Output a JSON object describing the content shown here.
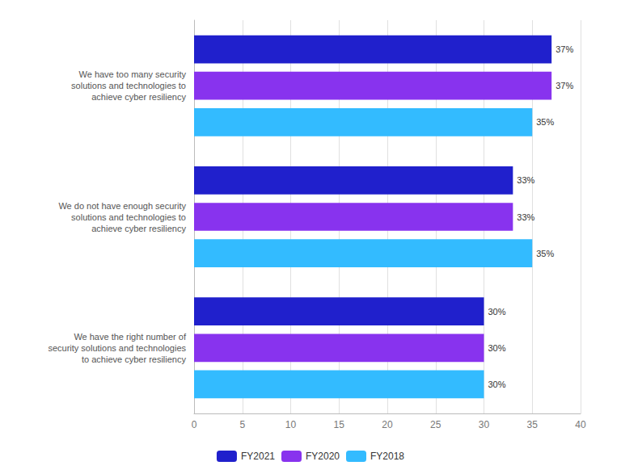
{
  "chart_data": {
    "type": "bar",
    "orientation": "horizontal",
    "categories": [
      "We have the right number of\nsecurity solutions and technologies\nto achieve cyber resiliency",
      "We do not have enough security\nsolutions and technologies to\nachieve cyber resiliency",
      "We have too many security\nsolutions and technologies to\nachieve cyber resiliency"
    ],
    "series": [
      {
        "name": "FY2021",
        "color": "#2020cc",
        "values": [
          30,
          33,
          37
        ],
        "value_labels": [
          "30%",
          "33%",
          "37%"
        ]
      },
      {
        "name": "FY2020",
        "color": "#8833ee",
        "values": [
          30,
          33,
          37
        ],
        "value_labels": [
          "30%",
          "33%",
          "37%"
        ]
      },
      {
        "name": "FY2018",
        "color": "#33bbff",
        "values": [
          30,
          35,
          35
        ],
        "value_labels": [
          "30%",
          "35%",
          "35%"
        ]
      }
    ],
    "xlim": [
      0,
      40
    ],
    "xticks": [
      0,
      5,
      10,
      15,
      20,
      25,
      30,
      35,
      40
    ],
    "grid": true,
    "data_labels": true,
    "legend": "bottom"
  }
}
